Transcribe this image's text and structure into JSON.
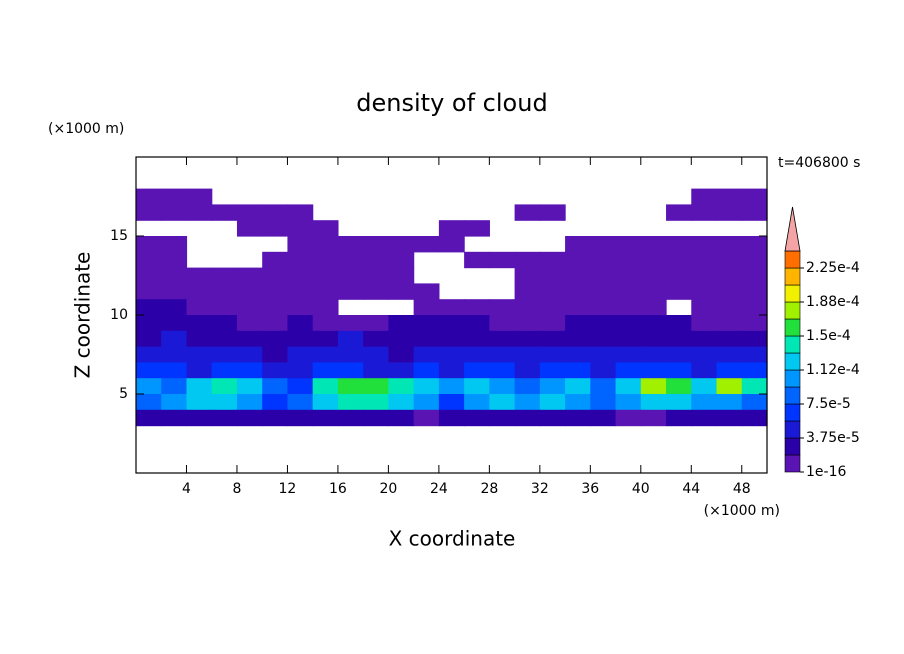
{
  "chart_data": {
    "type": "contour",
    "title": "density of cloud",
    "x_label": "X coordinate",
    "y_label": "Z coordinate",
    "x_unit": "(×1000 m)",
    "y_unit": "(×1000 m)",
    "time_label": "t=406800 s",
    "xlim": [
      0,
      50
    ],
    "xticks": [
      4,
      8,
      12,
      16,
      20,
      24,
      28,
      32,
      36,
      40,
      44,
      48
    ],
    "ylim": [
      0,
      20
    ],
    "yticks": [
      5,
      10,
      15
    ],
    "levels": [
      1e-16,
      1.875e-05,
      3.75e-05,
      5.625e-05,
      7.5e-05,
      9.375e-05,
      0.0001125,
      0.00013125,
      0.00015,
      0.00016875,
      0.0001875,
      0.00020625,
      0.000225,
      0.00024375
    ],
    "colors": [
      "#5a14b4",
      "#2c00a8",
      "#1a1ad6",
      "#0034ff",
      "#0064ff",
      "#0096ff",
      "#00c8f0",
      "#00e6b4",
      "#22e03c",
      "#a0f000",
      "#f0f000",
      "#ffb400",
      "#ff6e00"
    ],
    "over_color": "#f4a4a4",
    "colorbar_ticks": [
      1e-16,
      {
        "value": 3.75e-05,
        "label": "3.75e-5"
      },
      {
        "value": 7.5e-05,
        "label": "7.5e-5"
      },
      {
        "value": 0.0001125,
        "label": "1.12e-4"
      },
      {
        "value": 0.00015,
        "label": "1.5e-4"
      },
      {
        "value": 0.0001875,
        "label": "1.88e-4"
      },
      {
        "value": 0.000225,
        "label": "2.25e-4"
      }
    ],
    "x": [
      1,
      3,
      5,
      7,
      9,
      11,
      13,
      15,
      17,
      19,
      21,
      23,
      25,
      27,
      29,
      31,
      33,
      35,
      37,
      39,
      41,
      43,
      45,
      47,
      49
    ],
    "z": [
      17.5,
      16.5,
      15.5,
      14.5,
      13.5,
      12.5,
      11.5,
      10.5,
      9.5,
      8.5,
      7.5,
      6.5,
      5.5,
      4.5,
      3.5
    ],
    "values": [
      [
        1e-05,
        1e-05,
        1e-05,
        null,
        null,
        null,
        null,
        null,
        null,
        null,
        null,
        null,
        null,
        null,
        null,
        null,
        null,
        null,
        null,
        null,
        null,
        null,
        1e-05,
        1e-05,
        1e-05
      ],
      [
        1e-05,
        1e-05,
        1e-05,
        1e-05,
        1e-05,
        1e-05,
        1e-05,
        null,
        null,
        null,
        null,
        null,
        null,
        null,
        null,
        1e-05,
        1e-05,
        null,
        null,
        null,
        null,
        1e-05,
        1e-05,
        1e-05,
        1e-05
      ],
      [
        null,
        null,
        null,
        null,
        1e-05,
        1e-05,
        1e-05,
        1e-05,
        null,
        null,
        null,
        null,
        1e-05,
        1e-05,
        null,
        null,
        null,
        null,
        null,
        null,
        null,
        null,
        null,
        null,
        null
      ],
      [
        1e-05,
        1e-05,
        null,
        null,
        null,
        null,
        1e-05,
        1e-05,
        1e-05,
        1e-05,
        1e-05,
        1e-05,
        1e-05,
        null,
        null,
        null,
        null,
        1e-05,
        1e-05,
        1e-05,
        1e-05,
        1e-05,
        1e-05,
        1e-05,
        1e-05
      ],
      [
        1e-05,
        1e-05,
        null,
        null,
        null,
        1e-05,
        1e-05,
        1e-05,
        1e-05,
        1e-05,
        1e-05,
        null,
        null,
        1e-05,
        1e-05,
        1e-05,
        1e-05,
        1e-05,
        1e-05,
        1e-05,
        1e-05,
        1e-05,
        1e-05,
        1e-05,
        1e-05
      ],
      [
        1e-05,
        1e-05,
        1e-05,
        1e-05,
        1e-05,
        1e-05,
        1e-05,
        1e-05,
        1e-05,
        1e-05,
        1e-05,
        null,
        null,
        null,
        null,
        1e-05,
        1e-05,
        1e-05,
        1e-05,
        1e-05,
        1e-05,
        1e-05,
        1e-05,
        1e-05,
        1e-05
      ],
      [
        1e-05,
        1e-05,
        1e-05,
        1e-05,
        1e-05,
        1e-05,
        1e-05,
        1e-05,
        1e-05,
        1e-05,
        1e-05,
        1e-05,
        null,
        null,
        null,
        1e-05,
        1e-05,
        1e-05,
        1e-05,
        1e-05,
        1e-05,
        1e-05,
        1e-05,
        1e-05,
        1e-05
      ],
      [
        3e-05,
        3e-05,
        1e-05,
        1e-05,
        1e-05,
        1e-05,
        1e-05,
        1e-05,
        null,
        null,
        null,
        1e-05,
        1e-05,
        1e-05,
        1e-05,
        1e-05,
        1e-05,
        1e-05,
        1e-05,
        1e-05,
        1e-05,
        null,
        1e-05,
        1e-05,
        1e-05
      ],
      [
        3e-05,
        3e-05,
        3e-05,
        3e-05,
        1e-05,
        1e-05,
        3e-05,
        1e-05,
        1e-05,
        1e-05,
        3e-05,
        3e-05,
        3e-05,
        3e-05,
        1e-05,
        1e-05,
        1e-05,
        3e-05,
        3e-05,
        3e-05,
        3e-05,
        3e-05,
        1e-05,
        1e-05,
        1e-05
      ],
      [
        3e-05,
        5e-05,
        3e-05,
        3e-05,
        3e-05,
        3e-05,
        3e-05,
        3e-05,
        5e-05,
        3e-05,
        3e-05,
        3e-05,
        3e-05,
        3e-05,
        3e-05,
        3e-05,
        3e-05,
        3e-05,
        3e-05,
        3e-05,
        3e-05,
        3e-05,
        3e-05,
        3e-05,
        3e-05
      ],
      [
        5e-05,
        5e-05,
        5e-05,
        5e-05,
        5e-05,
        3e-05,
        5e-05,
        5e-05,
        5e-05,
        5e-05,
        3e-05,
        5e-05,
        5e-05,
        5e-05,
        5e-05,
        5e-05,
        5e-05,
        5e-05,
        5e-05,
        5e-05,
        5e-05,
        5e-05,
        5e-05,
        5e-05,
        5e-05
      ],
      [
        7e-05,
        7e-05,
        5e-05,
        7e-05,
        7e-05,
        5e-05,
        5e-05,
        7e-05,
        7e-05,
        5e-05,
        5e-05,
        7e-05,
        5e-05,
        7e-05,
        7e-05,
        5e-05,
        7e-05,
        7e-05,
        5e-05,
        7e-05,
        7e-05,
        7e-05,
        5e-05,
        7e-05,
        7e-05
      ],
      [
        0.00011,
        9e-05,
        0.000125,
        0.00014,
        0.000125,
        9e-05,
        7e-05,
        0.00014,
        0.00016,
        0.00016,
        0.00014,
        0.000125,
        0.00011,
        0.000125,
        0.00011,
        9e-05,
        0.00011,
        0.000125,
        9e-05,
        0.000125,
        0.00017,
        0.00016,
        0.000125,
        0.00017,
        0.00014
      ],
      [
        9e-05,
        0.00011,
        0.000125,
        0.000125,
        0.00011,
        7e-05,
        9e-05,
        0.000125,
        0.00014,
        0.00014,
        0.000125,
        0.00011,
        7e-05,
        0.00011,
        0.000125,
        0.00011,
        0.000125,
        0.00011,
        9e-05,
        0.00011,
        0.000125,
        0.000125,
        0.00011,
        0.00011,
        9e-05
      ],
      [
        3e-05,
        3e-05,
        3e-05,
        3e-05,
        3e-05,
        3e-05,
        3e-05,
        3e-05,
        3e-05,
        3e-05,
        3e-05,
        1e-05,
        3e-05,
        3e-05,
        3e-05,
        3e-05,
        3e-05,
        3e-05,
        3e-05,
        1e-05,
        1e-05,
        3e-05,
        3e-05,
        3e-05,
        3e-05
      ]
    ]
  }
}
